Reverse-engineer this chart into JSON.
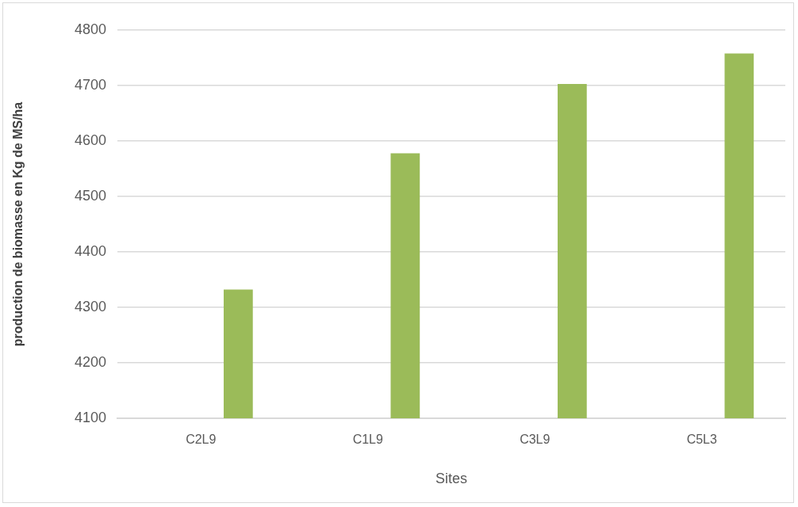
{
  "chart_data": {
    "type": "bar",
    "xlabel": "Sites",
    "ylabel": "production de biomasse en Kg de MS/ha",
    "categories": [
      "C2L9",
      "C1L9",
      "C3L9",
      "C5L3"
    ],
    "series": [
      {
        "values": [
          null,
          null,
          null,
          null
        ]
      },
      {
        "color": "#9bbb59",
        "values": [
          4332,
          4578,
          4703,
          4758
        ]
      }
    ],
    "ylim": [
      4100,
      4800
    ],
    "yticks": [
      4100,
      4200,
      4300,
      4400,
      4500,
      4600,
      4700,
      4800
    ],
    "grid": "y",
    "legend": false
  }
}
